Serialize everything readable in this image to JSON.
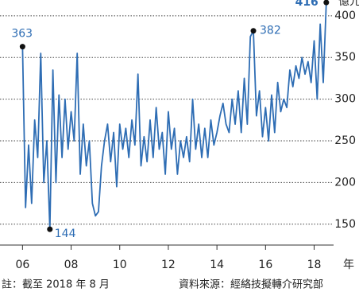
{
  "chart_data": {
    "type": "line",
    "unit": "億元",
    "x_unit": "年",
    "note": "註：截至 2018 年 8 月",
    "source": "資料來源：經絡技擬轉介研究部",
    "xlim": [
      2005.4,
      2018.8
    ],
    "ylim": [
      125,
      418
    ],
    "xticks": [
      {
        "value": 2006,
        "label": "06"
      },
      {
        "value": 2008,
        "label": "08"
      },
      {
        "value": 2010,
        "label": "10"
      },
      {
        "value": 2012,
        "label": "12"
      },
      {
        "value": 2014,
        "label": "14"
      },
      {
        "value": 2016,
        "label": "16"
      },
      {
        "value": 2018,
        "label": "18"
      }
    ],
    "yticks": [
      150,
      200,
      250,
      300,
      350,
      400
    ],
    "grid": true,
    "series": [
      {
        "color": "#2e6db4",
        "x": [
          2006,
          2006.125,
          2006.25,
          2006.375,
          2006.5,
          2006.625,
          2006.75,
          2006.875,
          2007,
          2007.125,
          2007.25,
          2007.375,
          2007.5,
          2007.625,
          2007.75,
          2007.875,
          2008,
          2008.125,
          2008.25,
          2008.375,
          2008.5,
          2008.625,
          2008.75,
          2008.875,
          2009,
          2009.125,
          2009.25,
          2009.375,
          2009.5,
          2009.625,
          2009.75,
          2009.875,
          2010,
          2010.125,
          2010.25,
          2010.375,
          2010.5,
          2010.625,
          2010.75,
          2010.875,
          2011,
          2011.125,
          2011.25,
          2011.375,
          2011.5,
          2011.625,
          2011.75,
          2011.875,
          2012,
          2012.125,
          2012.25,
          2012.375,
          2012.5,
          2012.625,
          2012.75,
          2012.875,
          2013,
          2013.125,
          2013.25,
          2013.375,
          2013.5,
          2013.625,
          2013.75,
          2013.875,
          2014,
          2014.125,
          2014.25,
          2014.375,
          2014.5,
          2014.625,
          2014.75,
          2014.875,
          2015,
          2015.125,
          2015.25,
          2015.375,
          2015.5,
          2015.625,
          2015.75,
          2015.875,
          2016,
          2016.125,
          2016.25,
          2016.375,
          2016.5,
          2016.625,
          2016.75,
          2016.875,
          2017,
          2017.125,
          2017.25,
          2017.375,
          2017.5,
          2017.625,
          2017.75,
          2017.875,
          2018,
          2018.125,
          2018.25,
          2018.375,
          2018.5
        ],
        "values": [
          363,
          170,
          245,
          175,
          275,
          230,
          355,
          200,
          250,
          144,
          335,
          200,
          305,
          230,
          300,
          240,
          285,
          250,
          355,
          210,
          270,
          220,
          250,
          175,
          160,
          165,
          220,
          250,
          270,
          225,
          260,
          195,
          270,
          240,
          265,
          230,
          275,
          245,
          330,
          220,
          255,
          225,
          275,
          230,
          290,
          240,
          260,
          210,
          285,
          240,
          265,
          210,
          250,
          230,
          255,
          225,
          300,
          240,
          270,
          230,
          265,
          230,
          275,
          245,
          260,
          280,
          295,
          270,
          260,
          300,
          270,
          310,
          260,
          325,
          270,
          375,
          382,
          280,
          310,
          255,
          290,
          250,
          305,
          260,
          320,
          285,
          300,
          290,
          335,
          315,
          340,
          325,
          350,
          330,
          345,
          320,
          370,
          300,
          390,
          320,
          416
        ]
      }
    ],
    "annotations": [
      {
        "x": 2006,
        "y": 363
      },
      {
        "x": 2007.125,
        "y": 144
      },
      {
        "x": 2015.5,
        "y": 382
      },
      {
        "x": 2018.5,
        "y": 416
      }
    ]
  }
}
